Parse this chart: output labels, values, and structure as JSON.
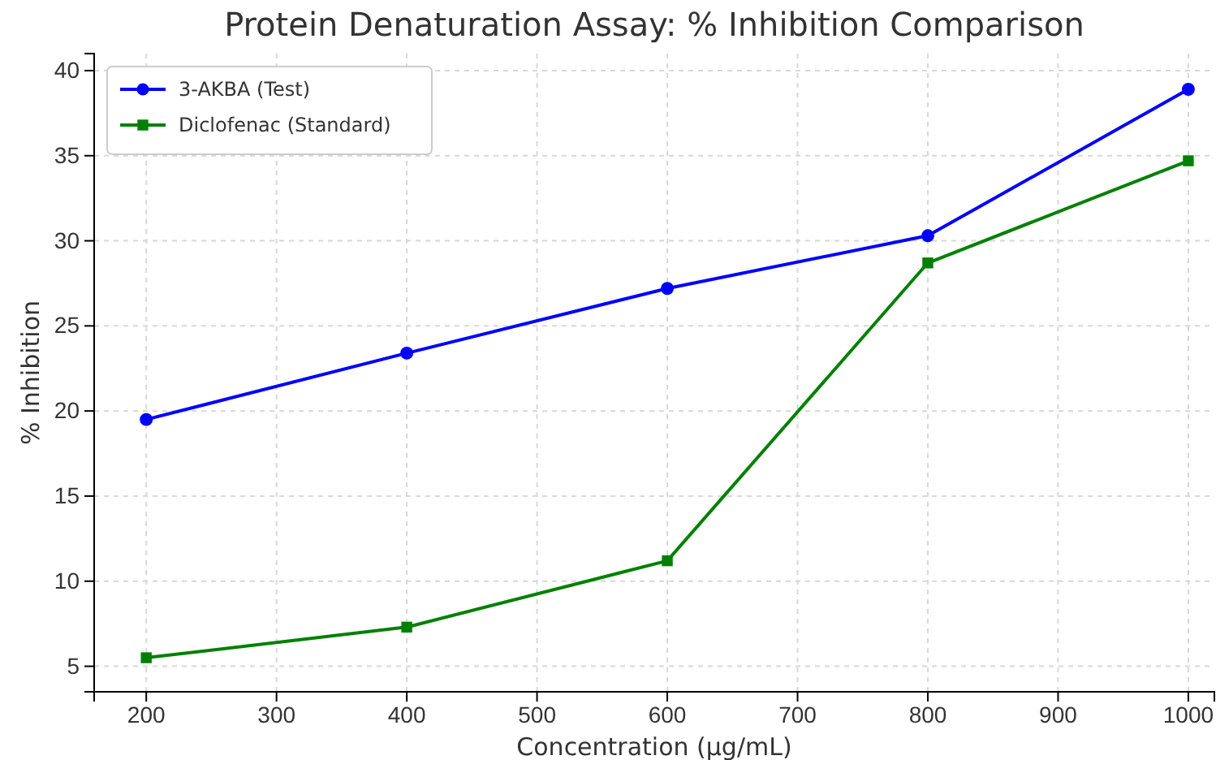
{
  "chart_data": {
    "type": "line",
    "title": "Protein Denaturation Assay: % Inhibition Comparison",
    "xlabel": "Concentration (µg/mL)",
    "ylabel": "% Inhibition",
    "x": [
      200,
      400,
      600,
      800,
      1000
    ],
    "series": [
      {
        "name": "3-AKBA (Test)",
        "color": "#0000ff",
        "marker": "circle",
        "values": [
          19.5,
          23.4,
          27.2,
          30.3,
          38.9
        ]
      },
      {
        "name": "Diclofenac (Standard)",
        "color": "#008000",
        "marker": "square",
        "values": [
          5.5,
          7.3,
          11.2,
          28.7,
          34.7
        ]
      }
    ],
    "xlim": [
      160,
      1020
    ],
    "xticks": [
      200,
      300,
      400,
      500,
      600,
      700,
      800,
      900,
      1000
    ],
    "ylim": [
      3.5,
      41
    ],
    "yticks": [
      5,
      10,
      15,
      20,
      25,
      30,
      35,
      40
    ],
    "grid": true,
    "legend": "top left",
    "line_style": "solid"
  }
}
